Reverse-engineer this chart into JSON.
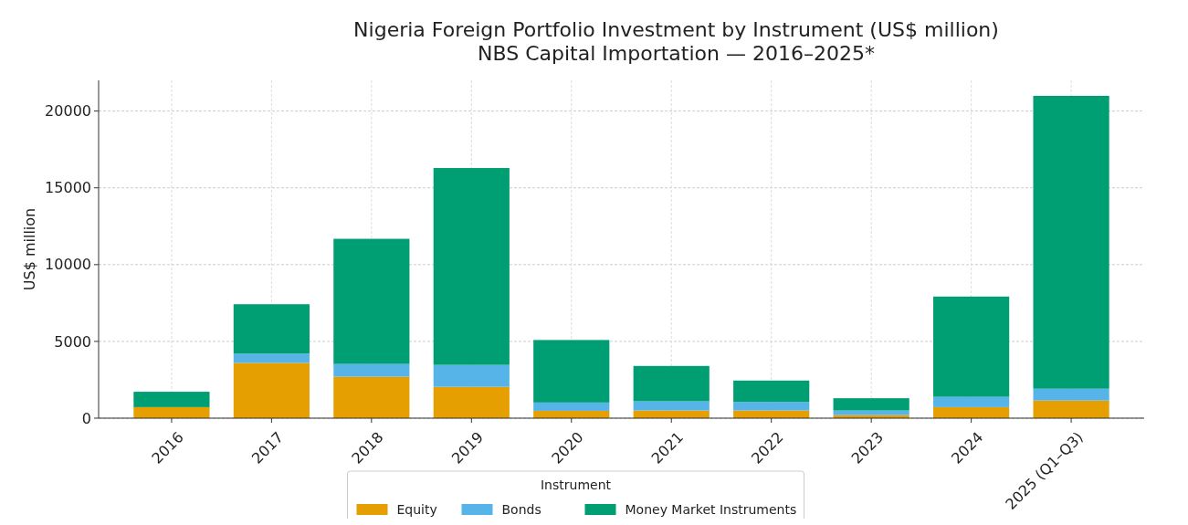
{
  "chart_data": {
    "type": "bar",
    "title": "Nigeria Foreign Portfolio Investment by Instrument (US$ million)",
    "subtitle": "NBS Capital Importation — 2016–2025*",
    "ylabel": "US$ million",
    "legend_title": "Instrument",
    "categories": [
      "2016",
      "2017",
      "2018",
      "2019",
      "2020",
      "2021",
      "2022",
      "2023",
      "2024",
      "2025 (Q1–Q3)"
    ],
    "series": [
      {
        "name": "Equity",
        "color": "#e69f00",
        "values": [
          720,
          3600,
          2700,
          2040,
          480,
          500,
          500,
          200,
          720,
          1150
        ]
      },
      {
        "name": "Bonds",
        "color": "#56b4e9",
        "values": [
          null,
          600,
          830,
          1430,
          540,
          600,
          550,
          300,
          670,
          770
        ]
      },
      {
        "name": "Money Market Instruments",
        "color": "#009e73",
        "values": [
          1000,
          3220,
          8150,
          12820,
          4070,
          2300,
          1400,
          800,
          6530,
          19070
        ]
      }
    ],
    "stacked": true,
    "ylim": [
      0,
      22000
    ],
    "yticks": [
      0,
      5000,
      10000,
      15000,
      20000
    ],
    "grid": true,
    "legend": "bottom"
  }
}
